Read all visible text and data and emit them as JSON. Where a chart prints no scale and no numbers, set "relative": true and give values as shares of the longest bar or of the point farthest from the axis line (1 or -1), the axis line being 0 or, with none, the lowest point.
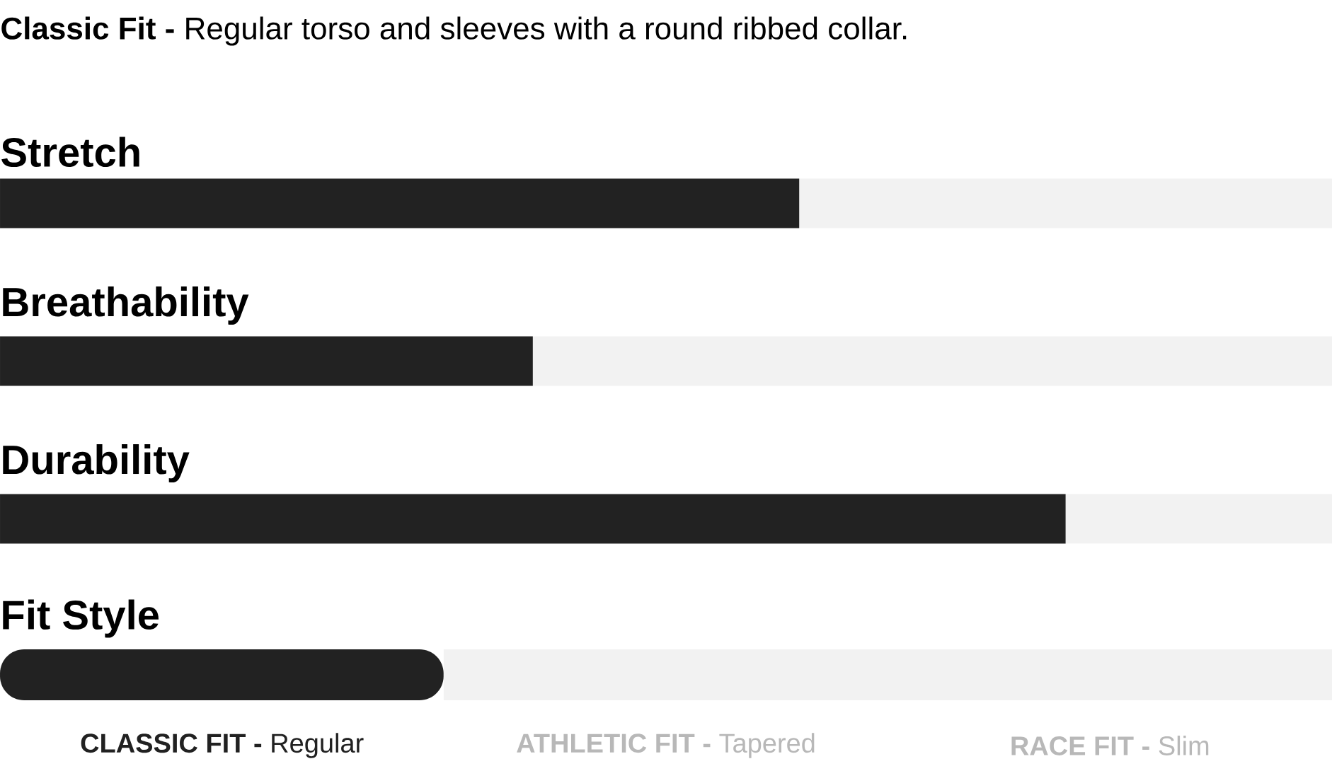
{
  "chart_data": [
    {
      "type": "bar",
      "orientation": "horizontal",
      "stacked": true,
      "relative": true,
      "title": "**Classic Fit -** Regular torso and sleeves with a round ribbed collar.",
      "categories": [
        "Stretch",
        "Breathability",
        "Durability"
      ],
      "series": [
        {
          "color": "#222222",
          "values": [
            0.6,
            0.4,
            0.8
          ]
        },
        {
          "color": "#f2f2f2",
          "values": [
            0.4,
            0.6,
            0.2
          ]
        }
      ]
    },
    {
      "type": "bar",
      "orientation": "horizontal",
      "stacked": true,
      "relative": true,
      "categories": [
        "Fit Style"
      ],
      "series": [
        {
          "color": "#222222",
          "values": [
            0.333
          ]
        },
        {
          "color": "#f2f2f2",
          "values": [
            0.667
          ]
        }
      ],
      "annotations": [
        "**CLASSIC FIT -** Regular",
        "**ATHLETIC FIT -** Tapered",
        "**RACE FIT -** Slim"
      ]
    }
  ]
}
